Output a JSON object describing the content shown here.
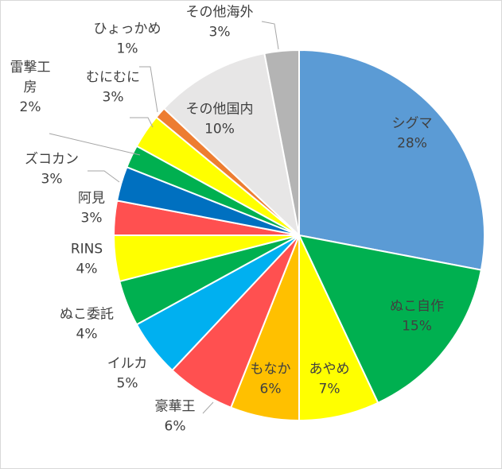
{
  "chart_data": {
    "type": "pie",
    "title": "",
    "start_angle_deg": 0,
    "direction": "clockwise",
    "slices": [
      {
        "label": "シグマ",
        "value": 28,
        "pct_text": "28%",
        "color": "#5b9bd5"
      },
      {
        "label": "ぬこ自作",
        "value": 15,
        "pct_text": "15%",
        "color": "#00b050"
      },
      {
        "label": "あやめ",
        "value": 7,
        "pct_text": "7%",
        "color": "#ffff00"
      },
      {
        "label": "もなか",
        "value": 6,
        "pct_text": "6%",
        "color": "#ffc000"
      },
      {
        "label": "豪華王",
        "value": 6,
        "pct_text": "6%",
        "color": "#ff5050"
      },
      {
        "label": "イルカ",
        "value": 5,
        "pct_text": "5%",
        "color": "#00b0f0"
      },
      {
        "label": "ぬこ委託",
        "value": 4,
        "pct_text": "4%",
        "color": "#00b050"
      },
      {
        "label": "RINS",
        "value": 4,
        "pct_text": "4%",
        "color": "#ffff00"
      },
      {
        "label": "阿見",
        "value": 3,
        "pct_text": "3%",
        "color": "#ff5050"
      },
      {
        "label": "ズコカン",
        "value": 3,
        "pct_text": "3%",
        "color": "#0070c0"
      },
      {
        "label": "雷撃工房",
        "value": 2,
        "pct_text": "2%",
        "color": "#00b050"
      },
      {
        "label": "むにむに",
        "value": 3,
        "pct_text": "3%",
        "color": "#ffff00"
      },
      {
        "label": "ひょっかめ",
        "value": 1,
        "pct_text": "1%",
        "color": "#ed7d31"
      },
      {
        "label": "その他国内",
        "value": 10,
        "pct_text": "10%",
        "color": "#e7e6e6"
      },
      {
        "label": "その他海外",
        "value": 3,
        "pct_text": "3%",
        "color": "#b4b4b4"
      }
    ]
  }
}
